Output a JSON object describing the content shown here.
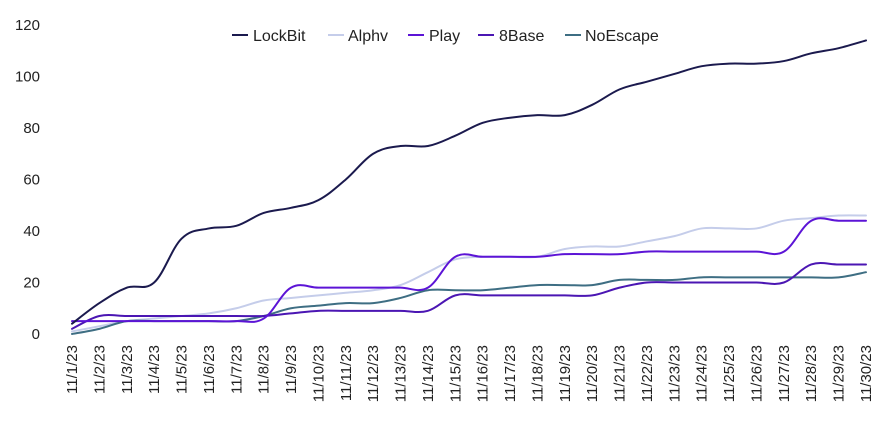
{
  "chart_data": {
    "type": "line",
    "title": "",
    "xlabel": "",
    "ylabel": "",
    "ylim": [
      0,
      120
    ],
    "yticks": [
      0,
      20,
      40,
      60,
      80,
      100,
      120
    ],
    "grid": false,
    "legend_position": "top",
    "categories": [
      "11/1/23",
      "11/2/23",
      "11/3/23",
      "11/4/23",
      "11/5/23",
      "11/6/23",
      "11/7/23",
      "11/8/23",
      "11/9/23",
      "11/10/23",
      "11/11/23",
      "11/12/23",
      "11/13/23",
      "11/14/23",
      "11/15/23",
      "11/16/23",
      "11/17/23",
      "11/18/23",
      "11/19/23",
      "11/20/23",
      "11/21/23",
      "11/22/23",
      "11/23/23",
      "11/24/23",
      "11/25/23",
      "11/26/23",
      "11/27/23",
      "11/28/23",
      "11/29/23",
      "11/30/23"
    ],
    "series": [
      {
        "name": "LockBit",
        "color": "#1b1a4e",
        "values": [
          4,
          12,
          18,
          20,
          37,
          41,
          42,
          47,
          49,
          52,
          60,
          70,
          73,
          73,
          77,
          82,
          84,
          85,
          85,
          89,
          95,
          98,
          101,
          104,
          105,
          105,
          106,
          109,
          111,
          114
        ]
      },
      {
        "name": "Alphv",
        "color": "#c5cdea",
        "values": [
          1,
          3,
          5,
          6,
          7,
          8,
          10,
          13,
          14,
          15,
          16,
          17,
          19,
          24,
          29,
          30,
          30,
          30,
          33,
          34,
          34,
          36,
          38,
          41,
          41,
          41,
          44,
          45,
          46,
          46
        ]
      },
      {
        "name": "Play",
        "color": "#5c14d6",
        "values": [
          5,
          5,
          5,
          5,
          5,
          5,
          5,
          6,
          18,
          18,
          18,
          18,
          18,
          18,
          30,
          30,
          30,
          30,
          31,
          31,
          31,
          32,
          32,
          32,
          32,
          32,
          32,
          44,
          44,
          44
        ]
      },
      {
        "name": "8Base",
        "color": "#4b16b3",
        "values": [
          2,
          7,
          7,
          7,
          7,
          7,
          7,
          7,
          8,
          9,
          9,
          9,
          9,
          9,
          15,
          15,
          15,
          15,
          15,
          15,
          18,
          20,
          20,
          20,
          20,
          20,
          20,
          27,
          27,
          27
        ]
      },
      {
        "name": "NoEscape",
        "color": "#3e6e83",
        "values": [
          0,
          2,
          5,
          5,
          5,
          5,
          5,
          7,
          10,
          11,
          12,
          12,
          14,
          17,
          17,
          17,
          18,
          19,
          19,
          19,
          21,
          21,
          21,
          22,
          22,
          22,
          22,
          22,
          22,
          24
        ]
      }
    ]
  }
}
